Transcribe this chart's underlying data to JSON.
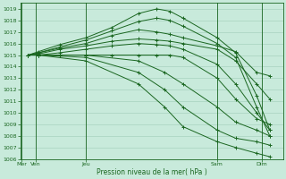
{
  "xlabel": "Pression niveau de la mer( hPa )",
  "background_color": "#c8eadb",
  "grid_color": "#a0ccb8",
  "line_color": "#1a6620",
  "ylim": [
    1006,
    1019.5
  ],
  "yticks": [
    1006,
    1007,
    1008,
    1009,
    1010,
    1011,
    1012,
    1013,
    1014,
    1015,
    1016,
    1017,
    1018,
    1019
  ],
  "xlim": [
    0,
    10.0
  ],
  "xtick_positions": [
    0.05,
    0.6,
    2.5,
    7.5,
    9.2
  ],
  "xtick_labels": [
    "Mer",
    "Ven",
    "Jeu",
    "Sam",
    "Dim"
  ],
  "vlines": [
    0.05,
    0.6,
    2.5,
    7.5,
    9.2
  ],
  "lines": [
    {
      "x": [
        0.3,
        0.7,
        1.5,
        2.5,
        3.5,
        4.5,
        5.2,
        5.7,
        6.2,
        7.5,
        8.2,
        9.0,
        9.5
      ],
      "y": [
        1015.0,
        1015.3,
        1015.9,
        1016.5,
        1017.4,
        1018.6,
        1019.0,
        1018.8,
        1018.2,
        1016.5,
        1015.2,
        1011.5,
        1008.5
      ]
    },
    {
      "x": [
        0.3,
        0.7,
        1.5,
        2.5,
        3.5,
        4.5,
        5.2,
        5.7,
        6.2,
        7.5,
        8.2,
        9.0,
        9.5
      ],
      "y": [
        1015.0,
        1015.2,
        1015.7,
        1016.3,
        1017.1,
        1017.9,
        1018.2,
        1018.0,
        1017.5,
        1016.0,
        1014.8,
        1010.5,
        1008.0
      ]
    },
    {
      "x": [
        0.3,
        0.7,
        1.5,
        2.5,
        3.5,
        4.5,
        5.2,
        5.7,
        6.2,
        7.5,
        8.2,
        9.0,
        9.5
      ],
      "y": [
        1015.0,
        1015.2,
        1015.6,
        1016.0,
        1016.7,
        1017.2,
        1017.0,
        1016.8,
        1016.5,
        1015.8,
        1015.3,
        1013.5,
        1013.2
      ]
    },
    {
      "x": [
        0.3,
        0.7,
        1.5,
        2.5,
        3.5,
        4.5,
        5.2,
        5.7,
        6.2,
        7.5,
        8.2,
        9.0,
        9.5
      ],
      "y": [
        1015.0,
        1015.1,
        1015.5,
        1015.8,
        1016.2,
        1016.4,
        1016.3,
        1016.2,
        1016.0,
        1015.5,
        1014.5,
        1012.5,
        1011.2
      ]
    },
    {
      "x": [
        0.3,
        0.7,
        1.5,
        2.5,
        3.5,
        4.5,
        5.2,
        5.7,
        6.2,
        7.5,
        8.2,
        9.0,
        9.5
      ],
      "y": [
        1015.0,
        1015.0,
        1015.2,
        1015.5,
        1015.8,
        1016.0,
        1015.9,
        1015.8,
        1015.5,
        1014.2,
        1012.5,
        1010.0,
        1008.5
      ]
    },
    {
      "x": [
        0.3,
        0.7,
        1.5,
        2.5,
        3.5,
        4.5,
        5.2,
        5.7,
        6.2,
        7.5,
        8.2,
        9.0,
        9.5
      ],
      "y": [
        1015.0,
        1015.0,
        1015.0,
        1015.0,
        1015.0,
        1015.0,
        1015.0,
        1015.0,
        1014.8,
        1013.0,
        1011.2,
        1009.5,
        1009.0
      ]
    },
    {
      "x": [
        0.3,
        0.7,
        2.5,
        4.5,
        5.5,
        6.2,
        7.5,
        8.2,
        9.0,
        9.5
      ],
      "y": [
        1015.0,
        1015.0,
        1015.0,
        1014.5,
        1013.5,
        1012.5,
        1010.5,
        1009.2,
        1008.5,
        1008.0
      ]
    },
    {
      "x": [
        0.3,
        0.7,
        2.5,
        4.5,
        5.5,
        6.2,
        7.5,
        8.2,
        9.0,
        9.5
      ],
      "y": [
        1015.0,
        1015.0,
        1014.8,
        1013.5,
        1012.0,
        1010.5,
        1008.5,
        1007.8,
        1007.5,
        1007.2
      ]
    },
    {
      "x": [
        0.3,
        0.7,
        2.5,
        4.5,
        5.5,
        6.2,
        7.5,
        8.2,
        9.0,
        9.5
      ],
      "y": [
        1015.0,
        1015.0,
        1014.5,
        1012.5,
        1010.5,
        1008.8,
        1007.5,
        1007.0,
        1006.5,
        1006.2
      ]
    }
  ],
  "figsize": [
    3.2,
    2.0
  ],
  "dpi": 100
}
